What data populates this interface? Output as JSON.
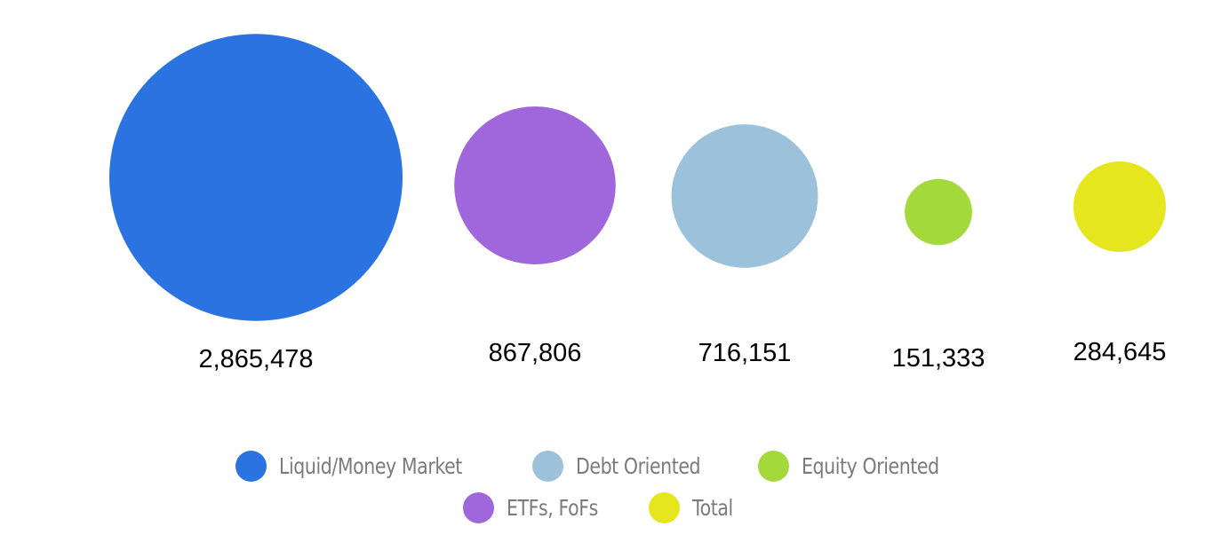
{
  "chart_data": {
    "type": "bubble",
    "title": "",
    "series": [
      {
        "name": "Liquid/Money Market",
        "value": 2865478,
        "label": "2,865,478",
        "color": "#2a73e1"
      },
      {
        "name": "ETFs, FoFs",
        "value": 867806,
        "label": "867,806",
        "color": "#a067dd"
      },
      {
        "name": "Debt Oriented",
        "value": 716151,
        "label": "716,151",
        "color": "#9cc1db"
      },
      {
        "name": "Equity Oriented",
        "value": 151333,
        "label": "151,333",
        "color": "#a3d93a"
      },
      {
        "name": "Total",
        "value": 284645,
        "label": "284,645",
        "color": "#e6e61e"
      }
    ],
    "legend_position": "bottom",
    "grid": false
  },
  "legend": {
    "rows": [
      [
        {
          "label": "Liquid/Money Market",
          "color": "#2a73e1"
        },
        {
          "label": "Debt Oriented",
          "color": "#9cc1db"
        },
        {
          "label": "Equity Oriented",
          "color": "#a3d93a"
        }
      ],
      [
        {
          "label": "ETFs, FoFs",
          "color": "#a067dd"
        },
        {
          "label": "Total",
          "color": "#e6e61e"
        }
      ]
    ]
  }
}
